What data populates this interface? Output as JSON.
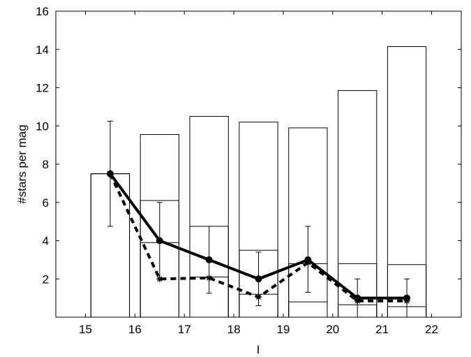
{
  "chart_data": {
    "type": "bar",
    "xlabel": "I",
    "ylabel": "#stars per mag",
    "xlim": [
      14.4,
      22.6
    ],
    "ylim": [
      0,
      16
    ],
    "xticks": [
      15,
      16,
      17,
      18,
      19,
      20,
      21,
      22
    ],
    "yticks": [
      2,
      4,
      6,
      8,
      10,
      12,
      14,
      16
    ],
    "grid": false,
    "legend": "none",
    "bar_width": 0.78,
    "bar_centers": [
      15.5,
      16.5,
      17.5,
      18.5,
      19.5,
      20.5,
      21.5
    ],
    "series": [
      {
        "role": "outer-bars",
        "values": [
          7.5,
          9.55,
          10.5,
          10.2,
          9.9,
          11.85,
          14.15
        ]
      },
      {
        "role": "inner-bars",
        "values": [
          7.5,
          6.1,
          4.75,
          3.5,
          2.8,
          2.8,
          2.75
        ]
      },
      {
        "role": "bottom-bars",
        "values": [
          null,
          3.9,
          2.1,
          1.2,
          0.8,
          0.65,
          0.55
        ]
      },
      {
        "role": "solid-line",
        "color": "#000000",
        "marker": "circle",
        "x": [
          15.5,
          16.5,
          17.5,
          18.5,
          19.5,
          20.5,
          21.5
        ],
        "y": [
          7.5,
          4.0,
          3.0,
          2.0,
          3.0,
          1.0,
          1.0
        ],
        "err_low": [
          4.75,
          2.0,
          1.25,
          0.6,
          1.3,
          0.0,
          0.0
        ],
        "err_high": [
          10.25,
          6.0,
          4.75,
          3.4,
          4.75,
          2.0,
          2.0
        ]
      },
      {
        "role": "dashed-line",
        "color": "#000000",
        "marker": "star",
        "x": [
          15.5,
          16.5,
          17.5,
          18.5,
          19.5,
          20.5,
          21.5
        ],
        "y": [
          7.5,
          2.0,
          2.05,
          1.05,
          2.85,
          0.85,
          0.85
        ]
      }
    ]
  }
}
